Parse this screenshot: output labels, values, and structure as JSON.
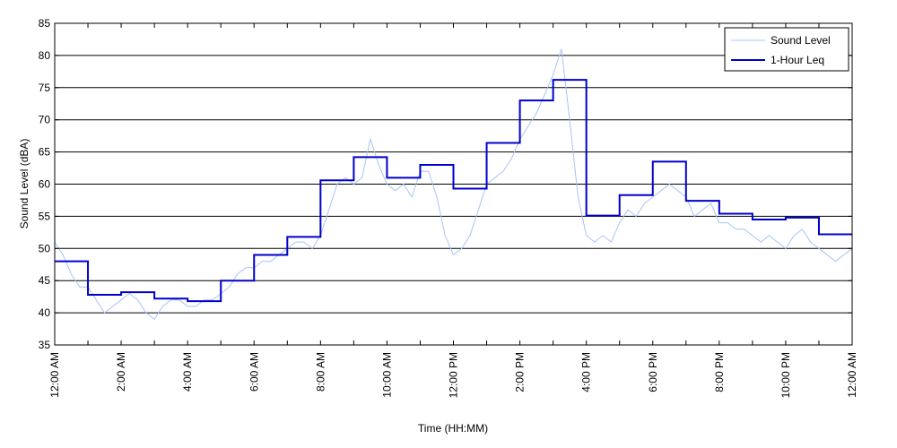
{
  "chart_data": {
    "type": "line",
    "xlabel": "Time (HH:MM)",
    "ylabel": "Sound Level (dBA)",
    "ylim": [
      35,
      85
    ],
    "xlim_hours": [
      0,
      24
    ],
    "yticks": [
      35,
      40,
      45,
      50,
      55,
      60,
      65,
      70,
      75,
      80,
      85
    ],
    "xtick_hours": [
      0,
      2,
      4,
      6,
      8,
      10,
      12,
      14,
      16,
      18,
      20,
      22,
      24
    ],
    "xtick_labels": [
      "12:00 AM",
      "2:00 AM",
      "4:00 AM",
      "6:00 AM",
      "8:00 AM",
      "10:00 AM",
      "12:00 PM",
      "2:00 PM",
      "4:00 PM",
      "6:00 PM",
      "8:00 PM",
      "10:00 PM",
      "12:00 AM"
    ],
    "grid": "horizontal",
    "legend_position": "top-right",
    "series": [
      {
        "name": "Sound Level",
        "color": "#a9c4f5",
        "style": "line",
        "x_hours": [
          0,
          0.25,
          0.5,
          0.75,
          1,
          1.25,
          1.5,
          1.75,
          2,
          2.25,
          2.5,
          2.75,
          3,
          3.25,
          3.5,
          3.75,
          4,
          4.25,
          4.5,
          4.75,
          5,
          5.25,
          5.5,
          5.75,
          6,
          6.25,
          6.5,
          6.75,
          7,
          7.25,
          7.5,
          7.75,
          8,
          8.25,
          8.5,
          8.75,
          9,
          9.25,
          9.5,
          9.75,
          10,
          10.25,
          10.5,
          10.75,
          11,
          11.25,
          11.5,
          11.75,
          12,
          12.25,
          12.5,
          12.75,
          13,
          13.25,
          13.5,
          13.75,
          14,
          14.25,
          14.5,
          14.75,
          15,
          15.25,
          15.5,
          15.75,
          16,
          16.25,
          16.5,
          16.75,
          17,
          17.25,
          17.5,
          17.75,
          18,
          18.25,
          18.5,
          18.75,
          19,
          19.25,
          19.5,
          19.75,
          20,
          20.25,
          20.5,
          20.75,
          21,
          21.25,
          21.5,
          21.75,
          22,
          22.25,
          22.5,
          22.75,
          23,
          23.25,
          23.5,
          23.75,
          24
        ],
        "values": [
          51,
          49,
          46,
          44,
          44,
          42,
          40,
          41,
          42,
          43,
          42,
          40,
          39,
          41,
          42,
          42,
          41,
          41,
          42,
          42,
          43,
          44,
          46,
          47,
          47,
          48,
          48,
          49,
          50,
          51,
          51,
          50,
          52,
          56,
          60,
          61,
          60,
          61,
          67,
          63,
          60,
          59,
          60,
          58,
          62,
          62,
          58,
          52,
          49,
          50,
          52,
          56,
          60,
          61,
          62,
          64,
          67,
          69,
          71,
          74,
          77,
          81,
          70,
          58,
          52,
          51,
          52,
          51,
          54,
          56,
          55,
          57,
          58,
          59,
          60,
          59,
          58,
          55,
          56,
          57,
          54,
          54,
          53,
          53,
          52,
          51,
          52,
          51,
          50,
          52,
          53,
          51,
          50,
          49,
          48,
          49,
          50
        ]
      },
      {
        "name": "1-Hour Leq",
        "color": "#0000cc",
        "style": "step",
        "hourly_values": [
          48.0,
          42.8,
          43.2,
          42.2,
          41.8,
          45.0,
          49.0,
          51.8,
          60.6,
          64.2,
          61.0,
          63.0,
          59.3,
          66.4,
          73.0,
          76.2,
          55.1,
          58.3,
          63.5,
          57.4,
          55.4,
          54.5,
          54.8,
          52.2
        ]
      }
    ]
  }
}
